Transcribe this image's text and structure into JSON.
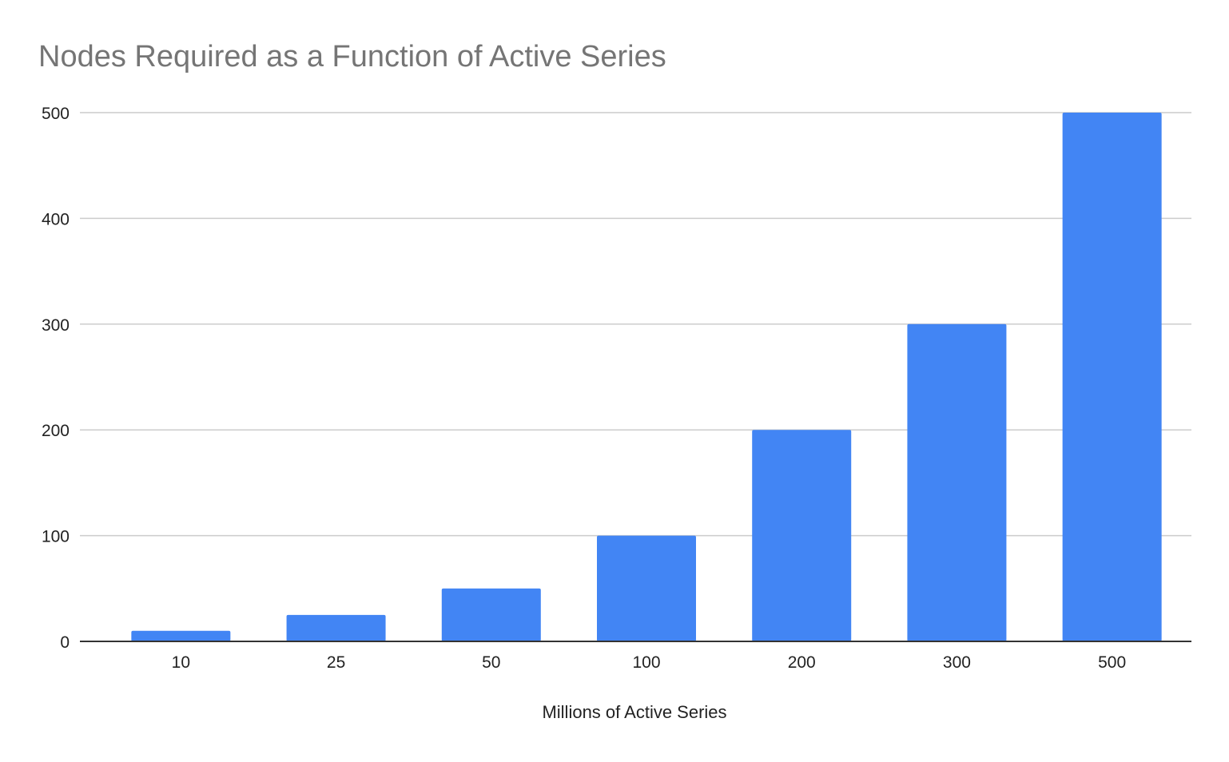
{
  "chart_data": {
    "type": "bar",
    "title": "Nodes Required as a Function of Active Series",
    "xlabel": "Millions of Active Series",
    "ylabel": "",
    "categories": [
      "10",
      "25",
      "50",
      "100",
      "200",
      "300",
      "500"
    ],
    "series": [
      {
        "values": [
          10,
          25,
          50,
          100,
          200,
          300,
          500
        ],
        "color": "#4285f4"
      }
    ],
    "ylim": [
      0,
      500
    ],
    "yticks": [
      "0",
      "100",
      "200",
      "300",
      "400",
      "500"
    ],
    "grid": true,
    "legend": "none"
  }
}
